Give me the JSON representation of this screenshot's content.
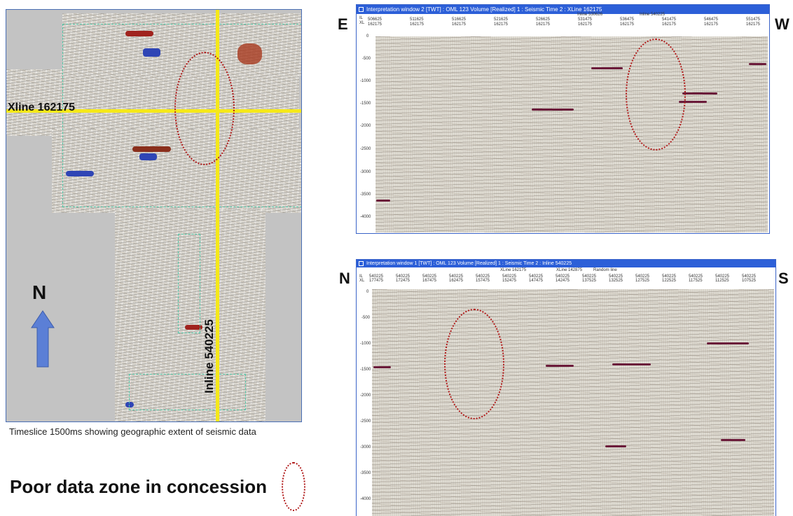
{
  "map": {
    "xline_label": "Xline 162175",
    "inline_label": "Inline 540225",
    "north_label": "N",
    "caption": "Timeslice 1500ms showing geographic extent of seismic data"
  },
  "legend": {
    "poor_zone_label": "Poor data zone in concession"
  },
  "window_top": {
    "title": "Interpretation window 2 [TWT] : OML 123 Volume [Realized] 1 : Seismic Time 2 : XLine 162175",
    "left_dir": "E",
    "right_dir": "W",
    "header_rows": [
      "IL",
      "XL"
    ],
    "markers": [
      "Inline 530626",
      "Inline 540225"
    ],
    "trace_il": [
      "506625",
      "511625",
      "516625",
      "521625",
      "526625",
      "531475",
      "536475",
      "541475",
      "546475",
      "551475"
    ],
    "trace_xl": [
      "162175",
      "162175",
      "162175",
      "162175",
      "162175",
      "162175",
      "162175",
      "162175",
      "162175",
      "162175"
    ],
    "time_ticks": [
      "0",
      "-500",
      "-1000",
      "-1500",
      "-2000",
      "-2500",
      "-3000",
      "-3500",
      "-4000"
    ]
  },
  "window_bottom": {
    "title": "Interpretation window 1 [TWT] : OML 123 Volume [Realized] 1 : Seismic Time 2 : Inline 540225",
    "left_dir": "N",
    "right_dir": "S",
    "header_rows": [
      "IL",
      "XL"
    ],
    "markers": [
      "XLine 162175",
      "XLine 142875",
      "Random line"
    ],
    "trace_il": [
      "540225",
      "540225",
      "540225",
      "540225",
      "540225",
      "540225",
      "540225",
      "540225",
      "540225",
      "540225",
      "540225",
      "540225",
      "540225",
      "540225",
      "540225"
    ],
    "trace_xl": [
      "177475",
      "172475",
      "167475",
      "162475",
      "157475",
      "152475",
      "147475",
      "142475",
      "137525",
      "132525",
      "127525",
      "122525",
      "117525",
      "112525",
      "107525"
    ],
    "time_ticks": [
      "0",
      "-500",
      "-1000",
      "-1500",
      "-2000",
      "-2500",
      "-3000",
      "-3500",
      "-4000"
    ]
  }
}
